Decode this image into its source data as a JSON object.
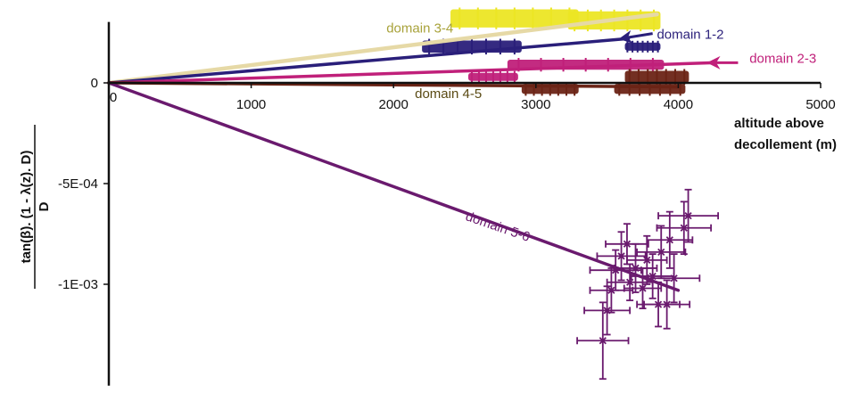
{
  "chart_data": {
    "type": "line",
    "xlabel_line1": "altitude above",
    "xlabel_line2": "decollement (m)",
    "ylabel_numerator": "tan(β). (1 - λ(z). D)",
    "ylabel_denominator": "D",
    "xlim": [
      0,
      5000
    ],
    "ylim": [
      -0.00145,
      0.00032
    ],
    "x_ticks": [
      {
        "value": 0,
        "label": "0"
      },
      {
        "value": 1000,
        "label": "1000"
      },
      {
        "value": 2000,
        "label": "2000"
      },
      {
        "value": 3000,
        "label": "3000"
      },
      {
        "value": 4000,
        "label": "4000"
      },
      {
        "value": 5000,
        "label": "5000"
      }
    ],
    "y_ticks": [
      {
        "value": 0,
        "label": "0"
      },
      {
        "value": -0.0005,
        "label": "-5E-04"
      },
      {
        "value": -0.001,
        "label": "-1E-03"
      }
    ],
    "lines": [
      {
        "name": "domain 3-4",
        "color": "#e6d9a6",
        "x": [
          0,
          3850
        ],
        "y": [
          0,
          0.00034
        ],
        "label_x": 1950,
        "label_y": 0.00025,
        "label_color": "#a8a23a"
      },
      {
        "name": "domain 1-2",
        "color": "#2a1f7a",
        "x": [
          0,
          3650
        ],
        "y": [
          0,
          0.00022
        ],
        "label_x": 3850,
        "label_y": 0.00022,
        "label_color": "#2a1f7a",
        "arrow": {
          "from_x": 3820,
          "from_y": 0.000245,
          "to_x": 3600,
          "to_y": 0.00022
        }
      },
      {
        "name": "domain 2-3",
        "color": "#c0207a",
        "x": [
          0,
          4250
        ],
        "y": [
          0,
          0.0001
        ],
        "label_x": 4500,
        "label_y": 0.0001,
        "label_color": "#c0207a",
        "arrow": {
          "from_x": 4420,
          "from_y": 0.0001,
          "to_x": 4220,
          "to_y": 0.0001
        }
      },
      {
        "name": "domain 4-5",
        "color": "#6b2416",
        "x": [
          0,
          4000
        ],
        "y": [
          0,
          -2e-05
        ],
        "label_x": 2150,
        "label_y": -7.5e-05,
        "label_color": "#5a4a14"
      },
      {
        "name": "domain 5-6",
        "color": "#6a1a6e",
        "x": [
          0,
          4000
        ],
        "y": [
          0,
          -0.00103
        ],
        "label_x": 2500,
        "label_y": -0.00068,
        "label_color": "#6a1a6e",
        "label_angle": 19
      }
    ],
    "clusters": [
      {
        "color": "#ece624",
        "cx": 2850,
        "cy": 0.00032,
        "w": 900,
        "h": 9e-05
      },
      {
        "color": "#ece624",
        "cx": 3550,
        "cy": 0.00031,
        "w": 650,
        "h": 9e-05
      },
      {
        "color": "#2a1f7a",
        "cx": 2550,
        "cy": 0.00018,
        "w": 700,
        "h": 6e-05
      },
      {
        "color": "#2a1f7a",
        "cx": 3750,
        "cy": 0.00018,
        "w": 250,
        "h": 4e-05
      },
      {
        "color": "#c0207a",
        "cx": 3350,
        "cy": 9e-05,
        "w": 1100,
        "h": 5e-05
      },
      {
        "color": "#c0207a",
        "cx": 2700,
        "cy": 3e-05,
        "w": 350,
        "h": 4e-05
      },
      {
        "color": "#6b2416",
        "cx": 3850,
        "cy": 3e-05,
        "w": 450,
        "h": 6e-05
      },
      {
        "color": "#6b2416",
        "cx": 3100,
        "cy": -3e-05,
        "w": 400,
        "h": 5e-05
      },
      {
        "color": "#6b2416",
        "cx": 3800,
        "cy": -3e-05,
        "w": 500,
        "h": 5e-05
      }
    ],
    "error_points": {
      "color": "#6a1a6e",
      "points": [
        {
          "x": 3470,
          "y": -0.00128,
          "xerr": 180,
          "yerr": 0.00019
        },
        {
          "x": 3500,
          "y": -0.00113,
          "xerr": 160,
          "yerr": 0.00012
        },
        {
          "x": 3530,
          "y": -0.00103,
          "xerr": 150,
          "yerr": 0.00011
        },
        {
          "x": 3560,
          "y": -0.00093,
          "xerr": 180,
          "yerr": 0.0001
        },
        {
          "x": 3600,
          "y": -0.00086,
          "xerr": 170,
          "yerr": 0.00012
        },
        {
          "x": 3640,
          "y": -0.0008,
          "xerr": 150,
          "yerr": 0.0001
        },
        {
          "x": 3660,
          "y": -0.00099,
          "xerr": 160,
          "yerr": 9e-05
        },
        {
          "x": 3700,
          "y": -0.00092,
          "xerr": 150,
          "yerr": 0.00012
        },
        {
          "x": 3750,
          "y": -0.00102,
          "xerr": 130,
          "yerr": 0.0001
        },
        {
          "x": 3780,
          "y": -0.00088,
          "xerr": 140,
          "yerr": 0.00012
        },
        {
          "x": 3820,
          "y": -0.00096,
          "xerr": 150,
          "yerr": 0.00011
        },
        {
          "x": 3860,
          "y": -0.0011,
          "xerr": 150,
          "yerr": 0.00011
        },
        {
          "x": 3880,
          "y": -0.00084,
          "xerr": 170,
          "yerr": 0.00013
        },
        {
          "x": 3920,
          "y": -0.0011,
          "xerr": 160,
          "yerr": 0.00012
        },
        {
          "x": 3940,
          "y": -0.00078,
          "xerr": 160,
          "yerr": 0.00014
        },
        {
          "x": 3970,
          "y": -0.00097,
          "xerr": 180,
          "yerr": 0.00012
        },
        {
          "x": 4040,
          "y": -0.00072,
          "xerr": 190,
          "yerr": 0.00013
        },
        {
          "x": 4070,
          "y": -0.00066,
          "xerr": 210,
          "yerr": 0.00013
        }
      ]
    }
  }
}
